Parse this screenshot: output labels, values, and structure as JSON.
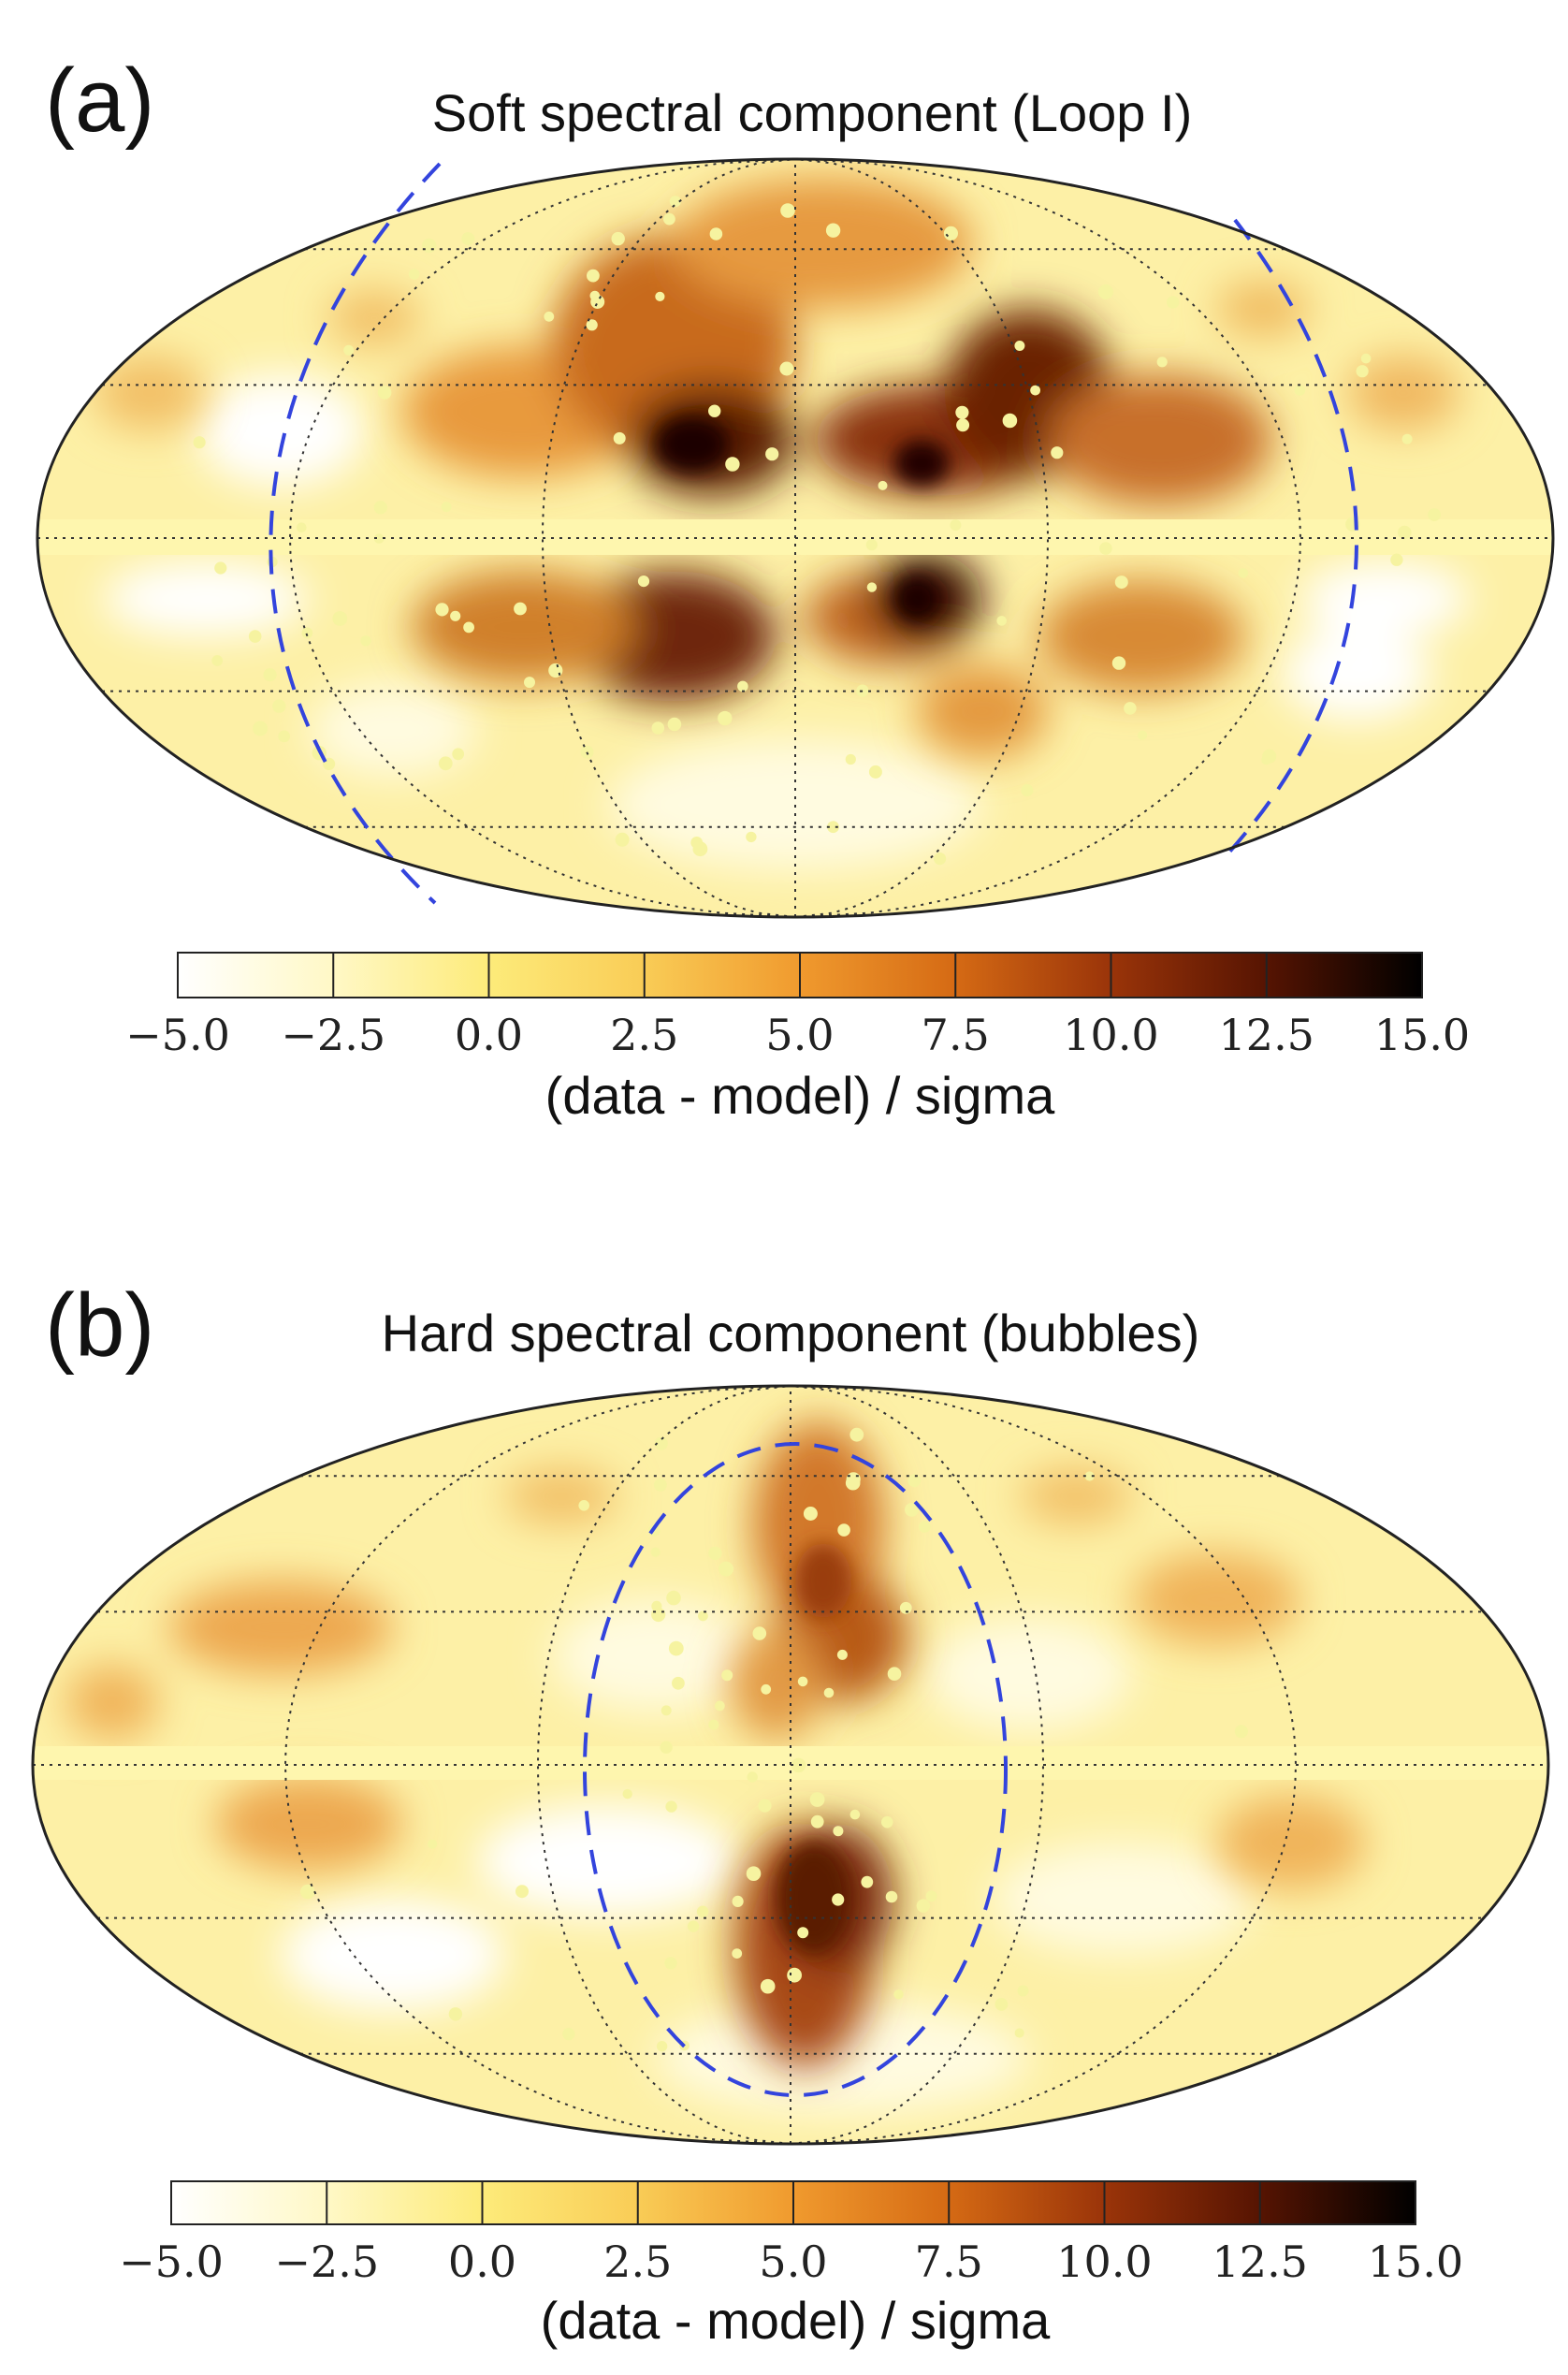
{
  "chart_data": [
    {
      "type": "heatmap",
      "panel_label": "(a)",
      "title": "Soft spectral component (Loop I)",
      "projection": "Mollweide all-sky map",
      "colorbar": {
        "label": "(data - model) / sigma",
        "ticks": [
          "−5.0",
          "−2.5",
          "0.0",
          "2.5",
          "5.0",
          "7.5",
          "10.0",
          "12.5",
          "15.0"
        ],
        "range": [
          -5.0,
          15.0
        ]
      },
      "outline": {
        "name": "Loop I",
        "style": "dashed",
        "color": "#3344dd"
      }
    },
    {
      "type": "heatmap",
      "panel_label": "(b)",
      "title": "Hard spectral component (bubbles)",
      "projection": "Mollweide all-sky map",
      "colorbar": {
        "label": "(data - model) / sigma",
        "ticks": [
          "−5.0",
          "−2.5",
          "0.0",
          "2.5",
          "5.0",
          "7.5",
          "10.0",
          "12.5",
          "15.0"
        ],
        "range": [
          -5.0,
          15.0
        ]
      },
      "outline": {
        "name": "bubbles",
        "style": "dashed",
        "color": "#3344dd"
      }
    }
  ],
  "colormap": [
    "#ffffff",
    "#fff8c6",
    "#fdeb7a",
    "#f9cc56",
    "#f09a2e",
    "#d56a14",
    "#9a3409",
    "#561402",
    "#000000"
  ]
}
